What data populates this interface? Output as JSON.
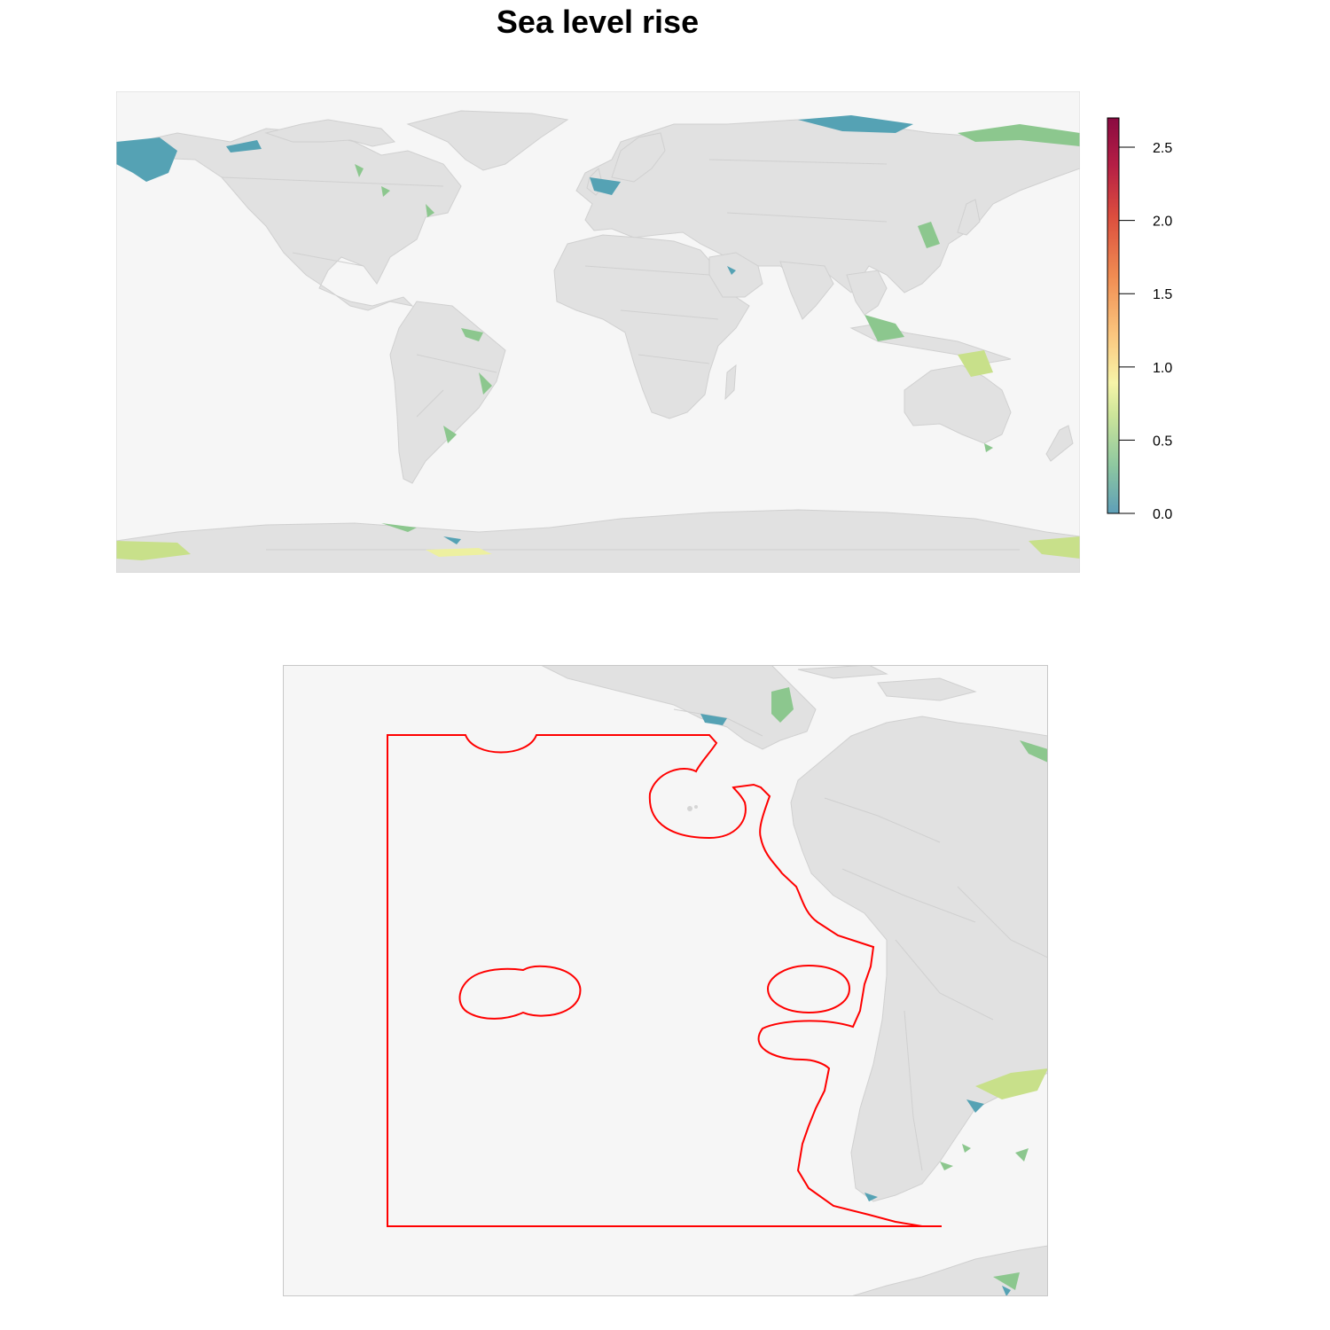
{
  "title": "Sea level rise",
  "legend": {
    "ticks": [
      "0.0",
      "0.5",
      "1.0",
      "1.5",
      "2.0",
      "2.5"
    ],
    "tick_values": [
      0.0,
      0.5,
      1.0,
      1.5,
      2.0,
      2.5
    ],
    "max": 2.7,
    "palette": [
      "#5e9fb8",
      "#8dc7a0",
      "#cde59a",
      "#f6f4a8",
      "#fbc77f",
      "#f08c52",
      "#dc4e3e",
      "#b51f45",
      "#8a0a41"
    ]
  },
  "colors": {
    "ocean": "#f6f6f6",
    "land": "#e1e1e1",
    "outline": "#ff0000",
    "frame": "#c8c8c8"
  },
  "panels": [
    {
      "name": "world-map"
    },
    {
      "name": "southeast-pacific-inset"
    }
  ]
}
